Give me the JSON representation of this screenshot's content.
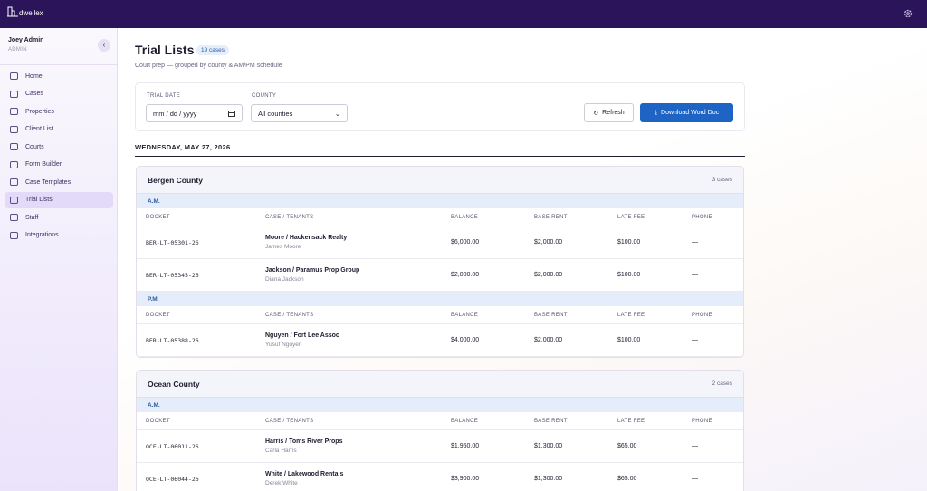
{
  "app": {
    "logo": "dwellex"
  },
  "sidebar": {
    "user": {
      "name": "Joey Admin",
      "role": "ADMIN"
    },
    "active": 7,
    "nav": [
      "Home",
      "Cases",
      "Properties",
      "Client List",
      "Courts",
      "Form Builder",
      "Case Templates",
      "Trial Lists",
      "Staff",
      "Integrations"
    ]
  },
  "header": {
    "title": "Trial Lists",
    "badge": "19 cases",
    "subtitle": "Court prep — grouped by county & AM/PM schedule"
  },
  "filters": {
    "date_label": "TRIAL DATE",
    "date_placeholder": "mm / dd / yyyy",
    "county_label": "COUNTY",
    "county_value": "All counties",
    "refresh": "Refresh",
    "download": "Download Word Doc"
  },
  "date_heading": "WEDNESDAY, MAY 27, 2026",
  "columns": [
    "DOCKET",
    "CASE / TENANTS",
    "BALANCE",
    "BASE RENT",
    "LATE FEE",
    "PHONE"
  ],
  "groups": [
    {
      "county": "Bergen County",
      "count": "3 cases",
      "sessions": [
        {
          "label": "A.M.",
          "rows": [
            {
              "docket": "BER-LT-05301-26",
              "case": "Moore / Hackensack Realty",
              "tenant": "James Moore",
              "balance": "$6,000.00",
              "base_rent": "$2,000.00",
              "late_fee": "$100.00",
              "phone": "—"
            },
            {
              "docket": "BER-LT-05345-26",
              "case": "Jackson / Paramus Prop Group",
              "tenant": "Diana Jackson",
              "balance": "$2,000.00",
              "base_rent": "$2,000.00",
              "late_fee": "$100.00",
              "phone": "—"
            }
          ]
        },
        {
          "label": "P.M.",
          "rows": [
            {
              "docket": "BER-LT-05388-26",
              "case": "Nguyen / Fort Lee Assoc",
              "tenant": "Yusuf Nguyen",
              "balance": "$4,000.00",
              "base_rent": "$2,000.00",
              "late_fee": "$100.00",
              "phone": "—"
            }
          ]
        }
      ]
    },
    {
      "county": "Ocean County",
      "count": "2 cases",
      "sessions": [
        {
          "label": "A.M.",
          "rows": [
            {
              "docket": "OCE-LT-06011-26",
              "case": "Harris / Toms River Props",
              "tenant": "Carla Harris",
              "balance": "$1,950.00",
              "base_rent": "$1,300.00",
              "late_fee": "$65.00",
              "phone": "—"
            },
            {
              "docket": "OCE-LT-06044-26",
              "case": "White / Lakewood Rentals",
              "tenant": "Derek White",
              "balance": "$3,900.00",
              "base_rent": "$1,300.00",
              "late_fee": "$65.00",
              "phone": "—"
            }
          ]
        }
      ]
    }
  ]
}
